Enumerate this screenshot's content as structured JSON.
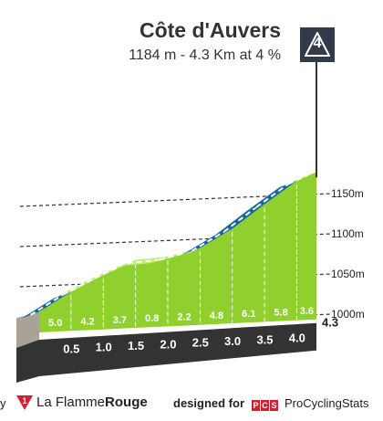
{
  "header": {
    "title": "Côte d'Auvers",
    "subtitle": "1184 m - 4.3 Km at 4 %",
    "category": "4"
  },
  "colors": {
    "accent_green": "#90d02e",
    "light_green": "#bfee72",
    "blue_section": "#14669e",
    "dark_band": "#333333",
    "badge": "#333b4a",
    "brand_red": "#d1202f"
  },
  "chart_data": {
    "type": "area",
    "title": "Côte d'Auvers",
    "xlabel": "",
    "ylabel": "",
    "x_unit": "km",
    "y_unit": "m",
    "xlim": [
      0,
      4.3
    ],
    "ylim": [
      1000,
      1150
    ],
    "y_ticks": [
      {
        "value": 1000,
        "label": "1000m"
      },
      {
        "value": 1050,
        "label": "1050m"
      },
      {
        "value": 1100,
        "label": "1100m"
      },
      {
        "value": 1150,
        "label": "1150m"
      }
    ],
    "x_ticks": [
      0.5,
      1.0,
      1.5,
      2.0,
      2.5,
      3.0,
      3.5,
      4.0
    ],
    "x_tick_labels": [
      "0.5",
      "1.0",
      "1.5",
      "2.0",
      "2.5",
      "3.0",
      "3.5",
      "4.0"
    ],
    "end_label": "4.3",
    "segments": [
      {
        "from": 0.0,
        "to": 0.5,
        "gradient": 5.0,
        "label": "5.0"
      },
      {
        "from": 0.5,
        "to": 1.0,
        "gradient": 4.2,
        "label": "4.2"
      },
      {
        "from": 1.0,
        "to": 1.5,
        "gradient": 3.7,
        "label": "3.7"
      },
      {
        "from": 1.5,
        "to": 2.0,
        "gradient": 0.8,
        "label": "0.8"
      },
      {
        "from": 2.0,
        "to": 2.5,
        "gradient": 2.2,
        "label": "2.2"
      },
      {
        "from": 2.5,
        "to": 3.0,
        "gradient": 4.8,
        "label": "4.8"
      },
      {
        "from": 3.0,
        "to": 3.5,
        "gradient": 6.1,
        "label": "6.1"
      },
      {
        "from": 3.5,
        "to": 4.0,
        "gradient": 5.8,
        "label": "5.8"
      },
      {
        "from": 4.0,
        "to": 4.3,
        "gradient": 3.6,
        "label": "3.6"
      }
    ],
    "start_altitude": 1003,
    "summit_altitude": 1184
  },
  "footer": {
    "left_text": "y",
    "brand_prefix": "La Flamme",
    "brand_suffix": "Rouge",
    "flag_number": "1",
    "designed_for": "designed for",
    "pcs_letters": [
      "P",
      "C",
      "S"
    ],
    "pcs_name": "ProCyclingStats"
  }
}
